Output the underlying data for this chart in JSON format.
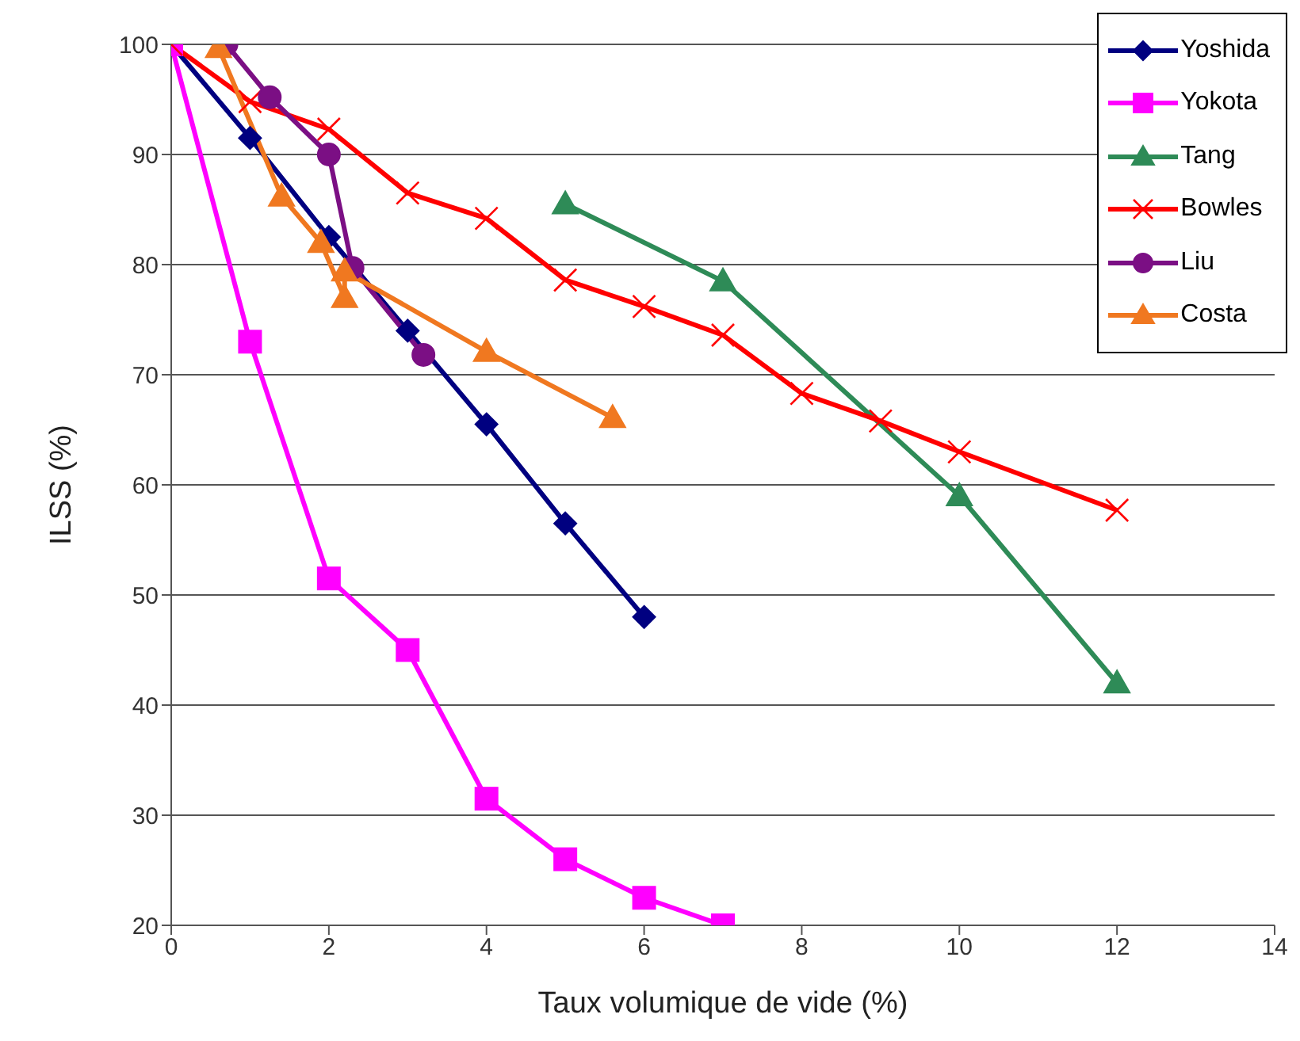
{
  "chart_data": {
    "type": "line",
    "xlabel": "Taux volumique de vide (%)",
    "ylabel": "ILSS (%)",
    "xlim": [
      0,
      14
    ],
    "xticks": [
      0,
      2,
      4,
      6,
      8,
      10,
      12,
      14
    ],
    "ylim": [
      20,
      100
    ],
    "yticks": [
      20,
      30,
      40,
      50,
      60,
      70,
      80,
      90,
      100
    ],
    "grid": "y",
    "legend": "top right",
    "series": [
      {
        "name": "Yoshida",
        "color": "#000080",
        "marker": "diamond",
        "x": [
          0,
          1,
          2,
          3,
          4,
          5,
          6
        ],
        "values": [
          100,
          91.5,
          82.5,
          74,
          65.5,
          56.5,
          48
        ]
      },
      {
        "name": "Yokota",
        "color": "#ff00ff",
        "marker": "square",
        "x": [
          0,
          1,
          2,
          3,
          4,
          5,
          6,
          7
        ],
        "values": [
          100,
          73,
          51.5,
          45,
          31.5,
          26,
          22.5,
          20
        ]
      },
      {
        "name": "Tang",
        "color": "#2e8b57",
        "marker": "triangle",
        "x": [
          5,
          7,
          10,
          12
        ],
        "values": [
          85.5,
          78.5,
          59,
          42
        ]
      },
      {
        "name": "Bowles",
        "color": "#ff0000",
        "marker": "cross",
        "x": [
          0,
          1,
          2,
          3,
          4,
          5,
          6,
          7,
          8,
          9,
          10,
          12
        ],
        "values": [
          100,
          94.8,
          92.3,
          86.5,
          84.2,
          78.6,
          76.2,
          73.6,
          68.3,
          65.8,
          63,
          57.7
        ]
      },
      {
        "name": "Liu",
        "color": "#7b0f84",
        "marker": "circle",
        "x": [
          0.7,
          1.25,
          2,
          2.3,
          3.2
        ],
        "values": [
          100,
          95.2,
          90,
          79.7,
          71.8
        ]
      },
      {
        "name": "Costa",
        "color": "#f07820",
        "marker": "triangle",
        "x": [
          0.6,
          1.4,
          1.9,
          2.2,
          2.2,
          4,
          5.6
        ],
        "values": [
          99.7,
          86.2,
          82,
          77,
          79.4,
          72.1,
          66.1
        ]
      }
    ]
  }
}
